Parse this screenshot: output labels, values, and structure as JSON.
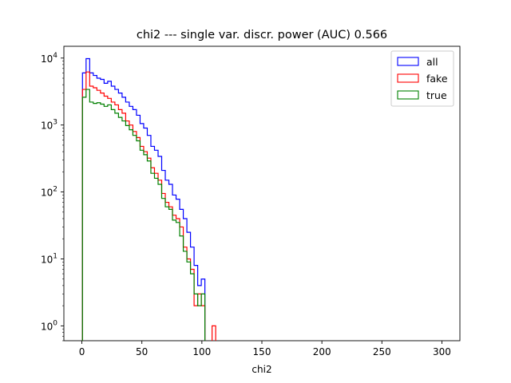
{
  "chart_data": {
    "type": "histogram-step",
    "title": "chi2 --- single var. discr. power (AUC) 0.566",
    "xlabel": "chi2",
    "ylabel": "",
    "yscale": "log",
    "xlim": [
      -15,
      315
    ],
    "ylim": [
      0.6,
      15000
    ],
    "x_ticks": [
      0,
      50,
      100,
      150,
      200,
      250,
      300
    ],
    "y_ticks": [
      {
        "value": 1,
        "label": "10^0"
      },
      {
        "value": 10,
        "label": "10^1"
      },
      {
        "value": 100,
        "label": "10^2"
      },
      {
        "value": 1000,
        "label": "10^3"
      },
      {
        "value": 10000,
        "label": "10^4"
      }
    ],
    "bin_width": 3,
    "legend": {
      "position": "upper-right"
    },
    "series": [
      {
        "name": "all",
        "color": "#0000ff",
        "bins": [
          {
            "x": 2,
            "y": 6000
          },
          {
            "x": 5,
            "y": 9800
          },
          {
            "x": 8,
            "y": 6000
          },
          {
            "x": 11,
            "y": 5500
          },
          {
            "x": 14,
            "y": 5000
          },
          {
            "x": 17,
            "y": 4800
          },
          {
            "x": 20,
            "y": 4200
          },
          {
            "x": 23,
            "y": 4500
          },
          {
            "x": 26,
            "y": 3800
          },
          {
            "x": 29,
            "y": 3400
          },
          {
            "x": 32,
            "y": 3000
          },
          {
            "x": 35,
            "y": 2600
          },
          {
            "x": 38,
            "y": 2200
          },
          {
            "x": 41,
            "y": 1900
          },
          {
            "x": 44,
            "y": 1700
          },
          {
            "x": 47,
            "y": 1400
          },
          {
            "x": 50,
            "y": 1050
          },
          {
            "x": 53,
            "y": 900
          },
          {
            "x": 56,
            "y": 700
          },
          {
            "x": 59,
            "y": 480
          },
          {
            "x": 62,
            "y": 420
          },
          {
            "x": 65,
            "y": 340
          },
          {
            "x": 68,
            "y": 210
          },
          {
            "x": 71,
            "y": 150
          },
          {
            "x": 74,
            "y": 130
          },
          {
            "x": 77,
            "y": 90
          },
          {
            "x": 80,
            "y": 78
          },
          {
            "x": 83,
            "y": 55
          },
          {
            "x": 86,
            "y": 40
          },
          {
            "x": 89,
            "y": 25
          },
          {
            "x": 92,
            "y": 15
          },
          {
            "x": 95,
            "y": 8
          },
          {
            "x": 98,
            "y": 4
          },
          {
            "x": 101,
            "y": 5
          }
        ]
      },
      {
        "name": "fake",
        "color": "#ff0000",
        "bins": [
          {
            "x": 2,
            "y": 3400
          },
          {
            "x": 5,
            "y": 6200
          },
          {
            "x": 8,
            "y": 3800
          },
          {
            "x": 11,
            "y": 3600
          },
          {
            "x": 14,
            "y": 3300
          },
          {
            "x": 17,
            "y": 3000
          },
          {
            "x": 20,
            "y": 2700
          },
          {
            "x": 23,
            "y": 2500
          },
          {
            "x": 26,
            "y": 2200
          },
          {
            "x": 29,
            "y": 2000
          },
          {
            "x": 32,
            "y": 1700
          },
          {
            "x": 35,
            "y": 1500
          },
          {
            "x": 38,
            "y": 1150
          },
          {
            "x": 41,
            "y": 1000
          },
          {
            "x": 44,
            "y": 800
          },
          {
            "x": 47,
            "y": 650
          },
          {
            "x": 50,
            "y": 480
          },
          {
            "x": 53,
            "y": 400
          },
          {
            "x": 56,
            "y": 320
          },
          {
            "x": 59,
            "y": 230
          },
          {
            "x": 62,
            "y": 190
          },
          {
            "x": 65,
            "y": 150
          },
          {
            "x": 68,
            "y": 95
          },
          {
            "x": 71,
            "y": 70
          },
          {
            "x": 74,
            "y": 60
          },
          {
            "x": 77,
            "y": 45
          },
          {
            "x": 80,
            "y": 40
          },
          {
            "x": 83,
            "y": 30
          },
          {
            "x": 86,
            "y": 15
          },
          {
            "x": 89,
            "y": 10
          },
          {
            "x": 92,
            "y": 7
          },
          {
            "x": 95,
            "y": 2
          },
          {
            "x": 98,
            "y": 3
          },
          {
            "x": 101,
            "y": 2
          },
          {
            "x": 110,
            "y": 1
          }
        ]
      },
      {
        "name": "true",
        "color": "#008000",
        "bins": [
          {
            "x": 2,
            "y": 2600
          },
          {
            "x": 5,
            "y": 3400
          },
          {
            "x": 8,
            "y": 2200
          },
          {
            "x": 11,
            "y": 2100
          },
          {
            "x": 14,
            "y": 2150
          },
          {
            "x": 17,
            "y": 2050
          },
          {
            "x": 20,
            "y": 1900
          },
          {
            "x": 23,
            "y": 2000
          },
          {
            "x": 26,
            "y": 1700
          },
          {
            "x": 29,
            "y": 1500
          },
          {
            "x": 32,
            "y": 1300
          },
          {
            "x": 35,
            "y": 1150
          },
          {
            "x": 38,
            "y": 980
          },
          {
            "x": 41,
            "y": 850
          },
          {
            "x": 44,
            "y": 700
          },
          {
            "x": 47,
            "y": 580
          },
          {
            "x": 50,
            "y": 420
          },
          {
            "x": 53,
            "y": 360
          },
          {
            "x": 56,
            "y": 290
          },
          {
            "x": 59,
            "y": 190
          },
          {
            "x": 62,
            "y": 160
          },
          {
            "x": 65,
            "y": 130
          },
          {
            "x": 68,
            "y": 80
          },
          {
            "x": 71,
            "y": 60
          },
          {
            "x": 74,
            "y": 55
          },
          {
            "x": 77,
            "y": 38
          },
          {
            "x": 80,
            "y": 35
          },
          {
            "x": 83,
            "y": 22
          },
          {
            "x": 86,
            "y": 13
          },
          {
            "x": 89,
            "y": 9
          },
          {
            "x": 92,
            "y": 6
          },
          {
            "x": 95,
            "y": 3
          },
          {
            "x": 98,
            "y": 2
          },
          {
            "x": 101,
            "y": 3
          }
        ]
      }
    ]
  }
}
